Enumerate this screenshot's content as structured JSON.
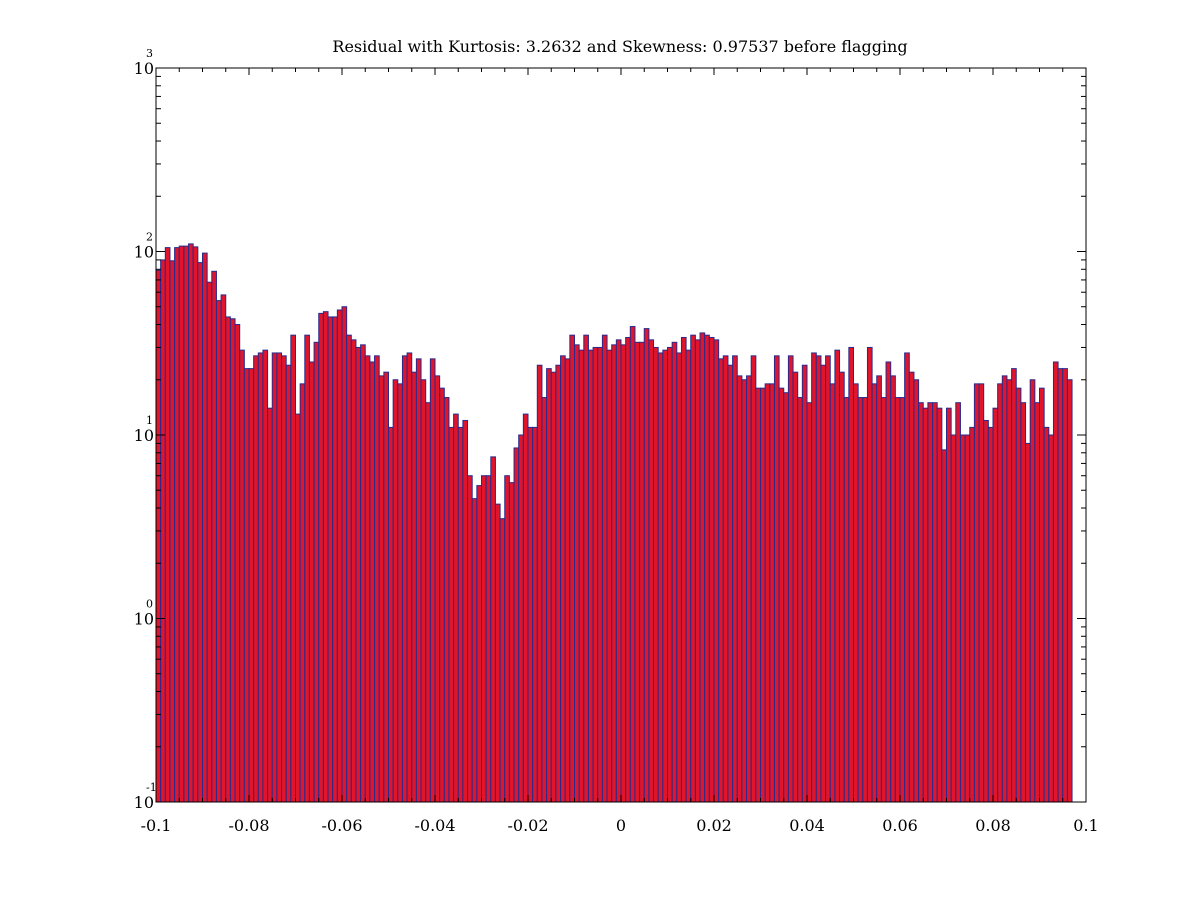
{
  "chart_data": {
    "type": "bar",
    "title": "Residual with Kurtosis: 3.2632 and Skewness: 0.97537 before flagging",
    "xlabel": "",
    "ylabel": "",
    "xlim": [
      -0.1,
      0.1
    ],
    "ylim": [
      0.1,
      1000
    ],
    "yscale": "log",
    "grid": false,
    "legend": "none",
    "bar_fill": "#e0142a",
    "bar_edge": "#2a2a8c",
    "x_ticks": [
      {
        "value": -0.1,
        "label": "-0.1"
      },
      {
        "value": -0.08,
        "label": "-0.08"
      },
      {
        "value": -0.06,
        "label": "-0.06"
      },
      {
        "value": -0.04,
        "label": "-0.04"
      },
      {
        "value": -0.02,
        "label": "-0.02"
      },
      {
        "value": 0,
        "label": "0"
      },
      {
        "value": 0.02,
        "label": "0.02"
      },
      {
        "value": 0.04,
        "label": "0.04"
      },
      {
        "value": 0.06,
        "label": "0.06"
      },
      {
        "value": 0.08,
        "label": "0.08"
      },
      {
        "value": 0.1,
        "label": "0.1"
      }
    ],
    "y_ticks": [
      {
        "value": 0.1,
        "base": "10",
        "exponent": "-1"
      },
      {
        "value": 1,
        "base": "10",
        "exponent": "0"
      },
      {
        "value": 10,
        "base": "10",
        "exponent": "1"
      },
      {
        "value": 100,
        "base": "10",
        "exponent": "2"
      },
      {
        "value": 1000,
        "base": "10",
        "exponent": "3"
      }
    ],
    "bin_start": -0.1,
    "bin_width": 0.001,
    "values": [
      79,
      90,
      105,
      89,
      105,
      107,
      107,
      110,
      106,
      87,
      98,
      68,
      78,
      54,
      58,
      44,
      43,
      40,
      29,
      23,
      23,
      27,
      28,
      29,
      14,
      28,
      28,
      27,
      24,
      35,
      13,
      19,
      35,
      25,
      32,
      46,
      47,
      44,
      44,
      48,
      50,
      35,
      33,
      30,
      31,
      27,
      25,
      27,
      21,
      22,
      11,
      20,
      19,
      27,
      28,
      22,
      26,
      20,
      15,
      26,
      21,
      18,
      16,
      11,
      13,
      11,
      12,
      6,
      4.5,
      5.3,
      6,
      6,
      7.6,
      4.2,
      3.5,
      6,
      5.5,
      8.5,
      10,
      13,
      11,
      11,
      24,
      16,
      23,
      22,
      24,
      27,
      26,
      35,
      31,
      29,
      35,
      29,
      30,
      30,
      35,
      29,
      31,
      33,
      31,
      34,
      39,
      32,
      32,
      38,
      33,
      30,
      28,
      29,
      30,
      32,
      28,
      34,
      29,
      35,
      33,
      36,
      35,
      34,
      33,
      26,
      27,
      24,
      27,
      21,
      20,
      21,
      27,
      18,
      18,
      19,
      19,
      27,
      18,
      17,
      27,
      22,
      16,
      24,
      15,
      28,
      27,
      24,
      27,
      19,
      29,
      22,
      16,
      30,
      19,
      16,
      16,
      30,
      19,
      21,
      16,
      25,
      21,
      16,
      16,
      28,
      22,
      20,
      15,
      14,
      15,
      15,
      14,
      8.3,
      14,
      10,
      15,
      10,
      10,
      11,
      19,
      19,
      12,
      11,
      14,
      19,
      21,
      20,
      23,
      18,
      15,
      9,
      20,
      15,
      18,
      11,
      10,
      25,
      23,
      23,
      20
    ]
  }
}
